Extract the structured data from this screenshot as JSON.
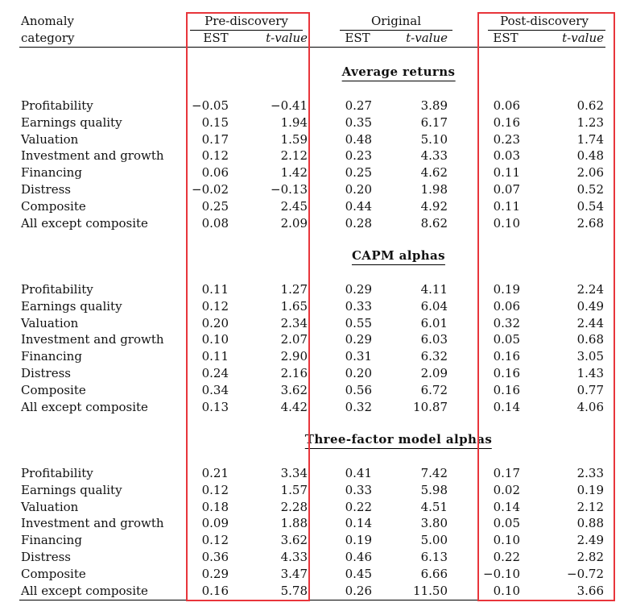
{
  "header": {
    "category_label_line1": "Anomaly",
    "category_label_line2": "category",
    "groups": [
      "Pre-discovery",
      "Original",
      "Post-discovery"
    ],
    "col_est": "EST",
    "col_t": "t-value"
  },
  "sections": [
    {
      "title": "Average returns",
      "rows": [
        [
          "Profitability",
          "−0.05",
          "−0.41",
          "0.27",
          "3.89",
          "0.06",
          "0.62"
        ],
        [
          "Earnings quality",
          "0.15",
          "1.94",
          "0.35",
          "6.17",
          "0.16",
          "1.23"
        ],
        [
          "Valuation",
          "0.17",
          "1.59",
          "0.48",
          "5.10",
          "0.23",
          "1.74"
        ],
        [
          "Investment and growth",
          "0.12",
          "2.12",
          "0.23",
          "4.33",
          "0.03",
          "0.48"
        ],
        [
          "Financing",
          "0.06",
          "1.42",
          "0.25",
          "4.62",
          "0.11",
          "2.06"
        ],
        [
          "Distress",
          "−0.02",
          "−0.13",
          "0.20",
          "1.98",
          "0.07",
          "0.52"
        ],
        [
          "Composite",
          "0.25",
          "2.45",
          "0.44",
          "4.92",
          "0.11",
          "0.54"
        ],
        [
          "All except composite",
          "0.08",
          "2.09",
          "0.28",
          "8.62",
          "0.10",
          "2.68"
        ]
      ]
    },
    {
      "title": "CAPM alphas",
      "rows": [
        [
          "Profitability",
          "0.11",
          "1.27",
          "0.29",
          "4.11",
          "0.19",
          "2.24"
        ],
        [
          "Earnings quality",
          "0.12",
          "1.65",
          "0.33",
          "6.04",
          "0.06",
          "0.49"
        ],
        [
          "Valuation",
          "0.20",
          "2.34",
          "0.55",
          "6.01",
          "0.32",
          "2.44"
        ],
        [
          "Investment and growth",
          "0.10",
          "2.07",
          "0.29",
          "6.03",
          "0.05",
          "0.68"
        ],
        [
          "Financing",
          "0.11",
          "2.90",
          "0.31",
          "6.32",
          "0.16",
          "3.05"
        ],
        [
          "Distress",
          "0.24",
          "2.16",
          "0.20",
          "2.09",
          "0.16",
          "1.43"
        ],
        [
          "Composite",
          "0.34",
          "3.62",
          "0.56",
          "6.72",
          "0.16",
          "0.77"
        ],
        [
          "All except composite",
          "0.13",
          "4.42",
          "0.32",
          "10.87",
          "0.14",
          "4.06"
        ]
      ]
    },
    {
      "title": "Three-factor model alphas",
      "rows": [
        [
          "Profitability",
          "0.21",
          "3.34",
          "0.41",
          "7.42",
          "0.17",
          "2.33"
        ],
        [
          "Earnings quality",
          "0.12",
          "1.57",
          "0.33",
          "5.98",
          "0.02",
          "0.19"
        ],
        [
          "Valuation",
          "0.18",
          "2.28",
          "0.22",
          "4.51",
          "0.14",
          "2.12"
        ],
        [
          "Investment and growth",
          "0.09",
          "1.88",
          "0.14",
          "3.80",
          "0.05",
          "0.88"
        ],
        [
          "Financing",
          "0.12",
          "3.62",
          "0.19",
          "5.00",
          "0.10",
          "2.49"
        ],
        [
          "Distress",
          "0.36",
          "4.33",
          "0.46",
          "6.13",
          "0.22",
          "2.82"
        ],
        [
          "Composite",
          "0.29",
          "3.47",
          "0.45",
          "6.66",
          "−0.10",
          "−0.72"
        ],
        [
          "All except composite",
          "0.16",
          "5.78",
          "0.26",
          "11.50",
          "0.10",
          "3.66"
        ]
      ]
    }
  ],
  "highlight_color": "#e8353b"
}
